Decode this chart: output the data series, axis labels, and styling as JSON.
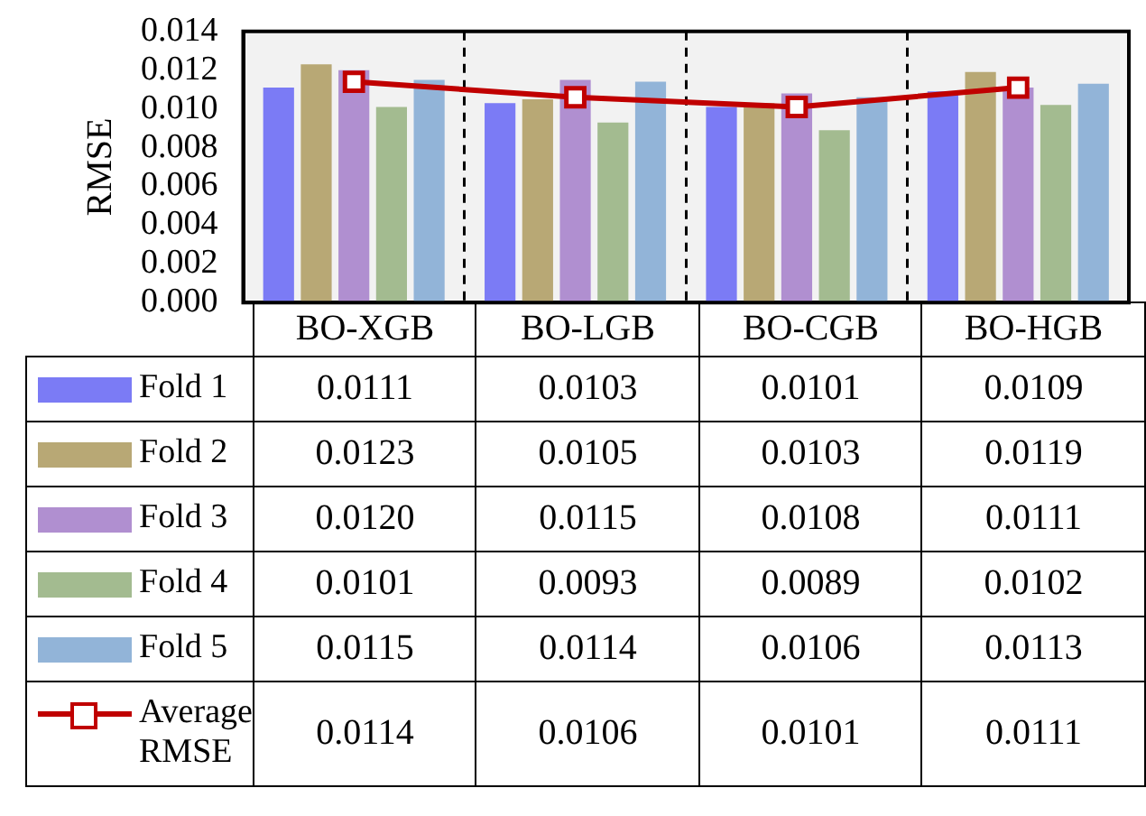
{
  "chart_data": {
    "type": "bar",
    "ylabel": "RMSE",
    "categories": [
      "BO-XGB",
      "BO-LGB",
      "BO-CGB",
      "BO-HGB"
    ],
    "ylim": [
      0,
      0.014
    ],
    "yticks": [
      {
        "value": 0,
        "label": "0.000"
      },
      {
        "value": 0.002,
        "label": "0.002"
      },
      {
        "value": 0.004,
        "label": "0.004"
      },
      {
        "value": 0.006,
        "label": "0.006"
      },
      {
        "value": 0.008,
        "label": "0.008"
      },
      {
        "value": 0.01,
        "label": "0.010"
      },
      {
        "value": 0.012,
        "label": "0.012"
      },
      {
        "value": 0.014,
        "label": "0.014"
      }
    ],
    "series": [
      {
        "name": "Fold 1",
        "color": "#7b7bf5",
        "values": [
          0.0111,
          0.0103,
          0.0101,
          0.0109
        ],
        "value_labels": [
          "0.0111",
          "0.0103",
          "0.0101",
          "0.0109"
        ]
      },
      {
        "name": "Fold 2",
        "color": "#b8a875",
        "values": [
          0.0123,
          0.0105,
          0.0103,
          0.0119
        ],
        "value_labels": [
          "0.0123",
          "0.0105",
          "0.0103",
          "0.0119"
        ]
      },
      {
        "name": "Fold 3",
        "color": "#b08fd0",
        "values": [
          0.012,
          0.0115,
          0.0108,
          0.0111
        ],
        "value_labels": [
          "0.0120",
          "0.0115",
          "0.0108",
          "0.0111"
        ]
      },
      {
        "name": "Fold 4",
        "color": "#a3bb90",
        "values": [
          0.0101,
          0.0093,
          0.0089,
          0.0102
        ],
        "value_labels": [
          "0.0101",
          "0.0093",
          "0.0089",
          "0.0102"
        ]
      },
      {
        "name": "Fold 5",
        "color": "#92b4d8",
        "values": [
          0.0115,
          0.0114,
          0.0106,
          0.0113
        ],
        "value_labels": [
          "0.0115",
          "0.0114",
          "0.0106",
          "0.0113"
        ]
      },
      {
        "name": "Average RMSE",
        "type": "line",
        "color": "#c00000",
        "values": [
          0.0114,
          0.0106,
          0.0101,
          0.0111
        ],
        "value_labels": [
          "0.0114",
          "0.0106",
          "0.0101",
          "0.0111"
        ]
      }
    ],
    "marker": "square",
    "line_style": "solid",
    "grid": "x",
    "legend": "bottom left",
    "tick_labels": "y"
  }
}
